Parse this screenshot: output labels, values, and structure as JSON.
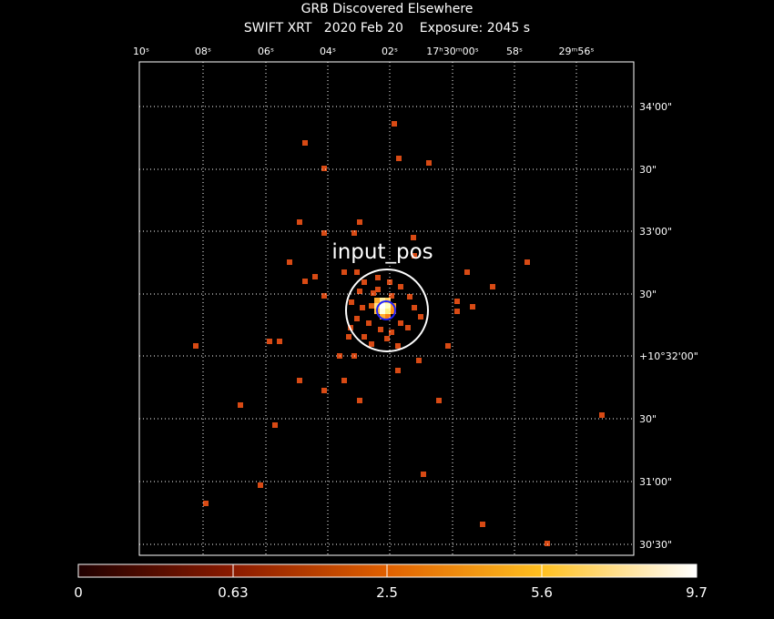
{
  "header": {
    "title": "GRB Discovered Elsewhere",
    "subtitle": "SWIFT XRT   2020 Feb 20    Exposure: 2045 s"
  },
  "top_axis": {
    "labels": [
      "10ˢ",
      "08ˢ",
      "06ˢ",
      "04ˢ",
      "02ˢ",
      "17ʰ30ᵐ00ˢ",
      "58ˢ",
      "29ᵐ56ˢ"
    ]
  },
  "right_axis": {
    "labels": [
      "34'00\"",
      "30\"",
      "33'00\"",
      "30\"",
      "+10°32'00\"",
      "30\"",
      "31'00\"",
      "30'30\""
    ]
  },
  "annotation": "input_pos",
  "colorbar": {
    "labels": [
      "0",
      "0.63",
      "2.5",
      "5.6",
      "9.7"
    ]
  }
}
